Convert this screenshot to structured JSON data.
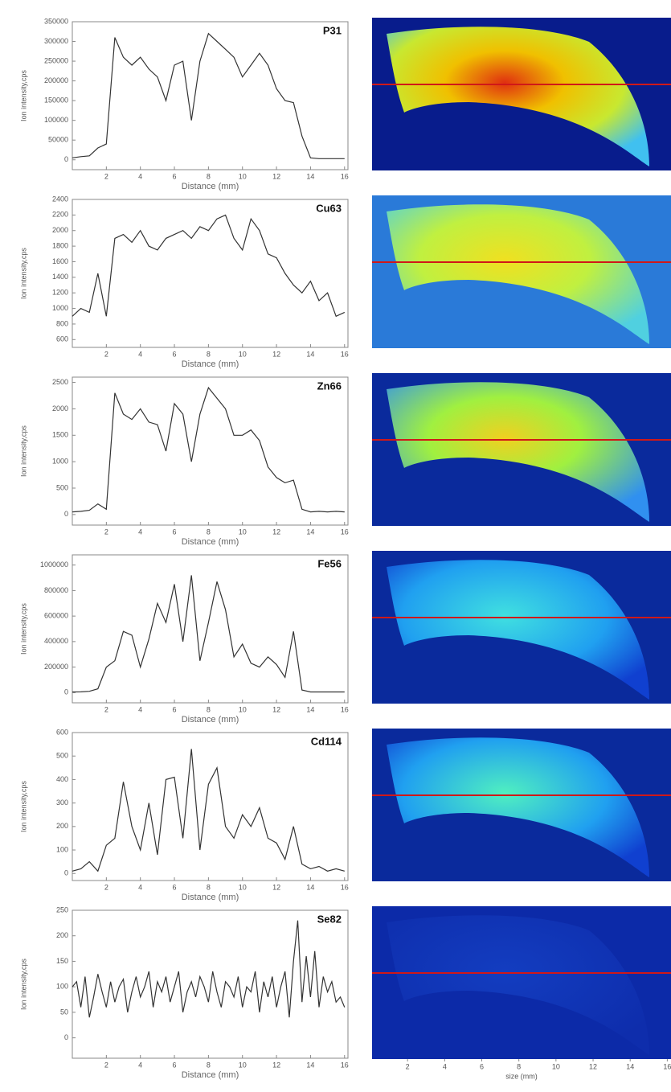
{
  "chart_data": [
    {
      "type": "line",
      "title": "P31",
      "xlabel": "Distance (mm)",
      "ylabel": "Ion intensity,cps",
      "color": "#333333",
      "xlim": [
        0,
        16.2
      ],
      "xticks": [
        2,
        4,
        6,
        8,
        10,
        12,
        14,
        16
      ],
      "ylim": [
        -25000,
        350000
      ],
      "yticks": [
        0,
        50000,
        100000,
        150000,
        200000,
        250000,
        300000,
        350000
      ],
      "x": [
        0,
        0.5,
        1,
        1.5,
        2,
        2.5,
        3,
        3.5,
        4,
        4.5,
        5,
        5.5,
        6,
        6.5,
        7,
        7.5,
        8,
        8.5,
        9,
        9.5,
        10,
        10.5,
        11,
        11.5,
        12,
        12.5,
        13,
        13.5,
        14,
        14.5,
        15,
        15.5,
        16
      ],
      "values": [
        5000,
        8000,
        10000,
        30000,
        40000,
        310000,
        260000,
        240000,
        260000,
        230000,
        210000,
        150000,
        240000,
        250000,
        100000,
        250000,
        320000,
        300000,
        280000,
        260000,
        210000,
        240000,
        270000,
        240000,
        180000,
        150000,
        145000,
        60000,
        5000,
        3000,
        3000,
        3000,
        3000
      ]
    },
    {
      "type": "line",
      "title": "Cu63",
      "xlabel": "Distance (mm)",
      "ylabel": "Ion intensity,cps",
      "color": "#333333",
      "xlim": [
        0,
        16.2
      ],
      "xticks": [
        2,
        4,
        6,
        8,
        10,
        12,
        14,
        16
      ],
      "ylim": [
        500,
        2400
      ],
      "yticks": [
        600,
        800,
        1000,
        1200,
        1400,
        1600,
        1800,
        2000,
        2200,
        2400
      ],
      "x": [
        0,
        0.5,
        1,
        1.5,
        2,
        2.5,
        3,
        3.5,
        4,
        4.5,
        5,
        5.5,
        6,
        6.5,
        7,
        7.5,
        8,
        8.5,
        9,
        9.5,
        10,
        10.5,
        11,
        11.5,
        12,
        12.5,
        13,
        13.5,
        14,
        14.5,
        15,
        15.5,
        16
      ],
      "values": [
        900,
        1000,
        950,
        1450,
        900,
        1900,
        1950,
        1850,
        2000,
        1800,
        1750,
        1900,
        1950,
        2000,
        1900,
        2050,
        2000,
        2150,
        2200,
        1900,
        1750,
        2150,
        2000,
        1700,
        1650,
        1450,
        1300,
        1200,
        1350,
        1100,
        1200,
        900,
        950
      ]
    },
    {
      "type": "line",
      "title": "Zn66",
      "xlabel": "Distance (mm)",
      "ylabel": "Ion intensity,cps",
      "color": "#333333",
      "xlim": [
        0,
        16.2
      ],
      "xticks": [
        2,
        4,
        6,
        8,
        10,
        12,
        14,
        16
      ],
      "ylim": [
        -200,
        2600
      ],
      "yticks": [
        0,
        500,
        1000,
        1500,
        2000,
        2500
      ],
      "x": [
        0,
        0.5,
        1,
        1.5,
        2,
        2.5,
        3,
        3.5,
        4,
        4.5,
        5,
        5.5,
        6,
        6.5,
        7,
        7.5,
        8,
        8.5,
        9,
        9.5,
        10,
        10.5,
        11,
        11.5,
        12,
        12.5,
        13,
        13.5,
        14,
        14.5,
        15,
        15.5,
        16
      ],
      "values": [
        50,
        60,
        80,
        200,
        100,
        2300,
        1900,
        1800,
        2000,
        1750,
        1700,
        1200,
        2100,
        1900,
        1000,
        1900,
        2400,
        2200,
        2000,
        1500,
        1500,
        1600,
        1400,
        900,
        700,
        600,
        650,
        100,
        50,
        60,
        50,
        60,
        50
      ]
    },
    {
      "type": "line",
      "title": "Fe56",
      "xlabel": "Distance (mm)",
      "ylabel": "Ion intensity,cps",
      "color": "#333333",
      "xlim": [
        0,
        16.2
      ],
      "xticks": [
        2,
        4,
        6,
        8,
        10,
        12,
        14,
        16
      ],
      "ylim": [
        -80000,
        1080000
      ],
      "yticks": [
        0,
        200000,
        400000,
        600000,
        800000,
        1000000
      ],
      "x": [
        0,
        0.5,
        1,
        1.5,
        2,
        2.5,
        3,
        3.5,
        4,
        4.5,
        5,
        5.5,
        6,
        6.5,
        7,
        7.5,
        8,
        8.5,
        9,
        9.5,
        10,
        10.5,
        11,
        11.5,
        12,
        12.5,
        13,
        13.5,
        14,
        14.5,
        15,
        15.5,
        16
      ],
      "values": [
        5000,
        6000,
        10000,
        30000,
        200000,
        250000,
        480000,
        450000,
        200000,
        420000,
        700000,
        550000,
        850000,
        400000,
        920000,
        250000,
        550000,
        870000,
        650000,
        280000,
        380000,
        230000,
        200000,
        280000,
        220000,
        120000,
        480000,
        20000,
        5000,
        5000,
        5000,
        5000,
        5000
      ]
    },
    {
      "type": "line",
      "title": "Cd114",
      "xlabel": "Distance (mm)",
      "ylabel": "Ion intensity,cps",
      "color": "#333333",
      "xlim": [
        0,
        16.2
      ],
      "xticks": [
        2,
        4,
        6,
        8,
        10,
        12,
        14,
        16
      ],
      "ylim": [
        -30,
        600
      ],
      "yticks": [
        0,
        100,
        200,
        300,
        400,
        500,
        600
      ],
      "x": [
        0,
        0.5,
        1,
        1.5,
        2,
        2.5,
        3,
        3.5,
        4,
        4.5,
        5,
        5.5,
        6,
        6.5,
        7,
        7.5,
        8,
        8.5,
        9,
        9.5,
        10,
        10.5,
        11,
        11.5,
        12,
        12.5,
        13,
        13.5,
        14,
        14.5,
        15,
        15.5,
        16
      ],
      "values": [
        10,
        20,
        50,
        10,
        120,
        150,
        390,
        200,
        100,
        300,
        80,
        400,
        410,
        150,
        530,
        100,
        380,
        450,
        200,
        150,
        250,
        200,
        280,
        150,
        130,
        60,
        200,
        40,
        20,
        30,
        10,
        20,
        10
      ]
    },
    {
      "type": "line",
      "title": "Se82",
      "xlabel": "Distance (mm)",
      "ylabel": "Ion intensity,cps",
      "color": "#333333",
      "xlim": [
        0,
        16.2
      ],
      "xticks": [
        2,
        4,
        6,
        8,
        10,
        12,
        14,
        16
      ],
      "ylim": [
        -40,
        250
      ],
      "yticks": [
        0,
        50,
        100,
        150,
        200,
        250
      ],
      "x": [
        0,
        0.25,
        0.5,
        0.75,
        1,
        1.25,
        1.5,
        1.75,
        2,
        2.25,
        2.5,
        2.75,
        3,
        3.25,
        3.5,
        3.75,
        4,
        4.25,
        4.5,
        4.75,
        5,
        5.25,
        5.5,
        5.75,
        6,
        6.25,
        6.5,
        6.75,
        7,
        7.25,
        7.5,
        7.75,
        8,
        8.25,
        8.5,
        8.75,
        9,
        9.25,
        9.5,
        9.75,
        10,
        10.25,
        10.5,
        10.75,
        11,
        11.25,
        11.5,
        11.75,
        12,
        12.25,
        12.5,
        12.75,
        13,
        13.25,
        13.5,
        13.75,
        14,
        14.25,
        14.5,
        14.75,
        15,
        15.25,
        15.5,
        15.75,
        16
      ],
      "values": [
        100,
        110,
        60,
        120,
        40,
        80,
        125,
        90,
        60,
        110,
        70,
        100,
        115,
        50,
        90,
        120,
        80,
        100,
        130,
        60,
        110,
        90,
        120,
        70,
        100,
        130,
        50,
        90,
        110,
        80,
        120,
        100,
        70,
        130,
        90,
        60,
        110,
        100,
        80,
        120,
        60,
        100,
        90,
        130,
        50,
        110,
        80,
        120,
        60,
        100,
        130,
        40,
        150,
        230,
        70,
        160,
        80,
        170,
        60,
        120,
        90,
        110,
        70,
        80,
        60
      ]
    },
    {
      "type": "image",
      "xlabel": "size (mm)",
      "xlim": [
        0,
        16.2
      ],
      "xticks": [
        2,
        4,
        6,
        8,
        10,
        12,
        14,
        16
      ]
    }
  ]
}
